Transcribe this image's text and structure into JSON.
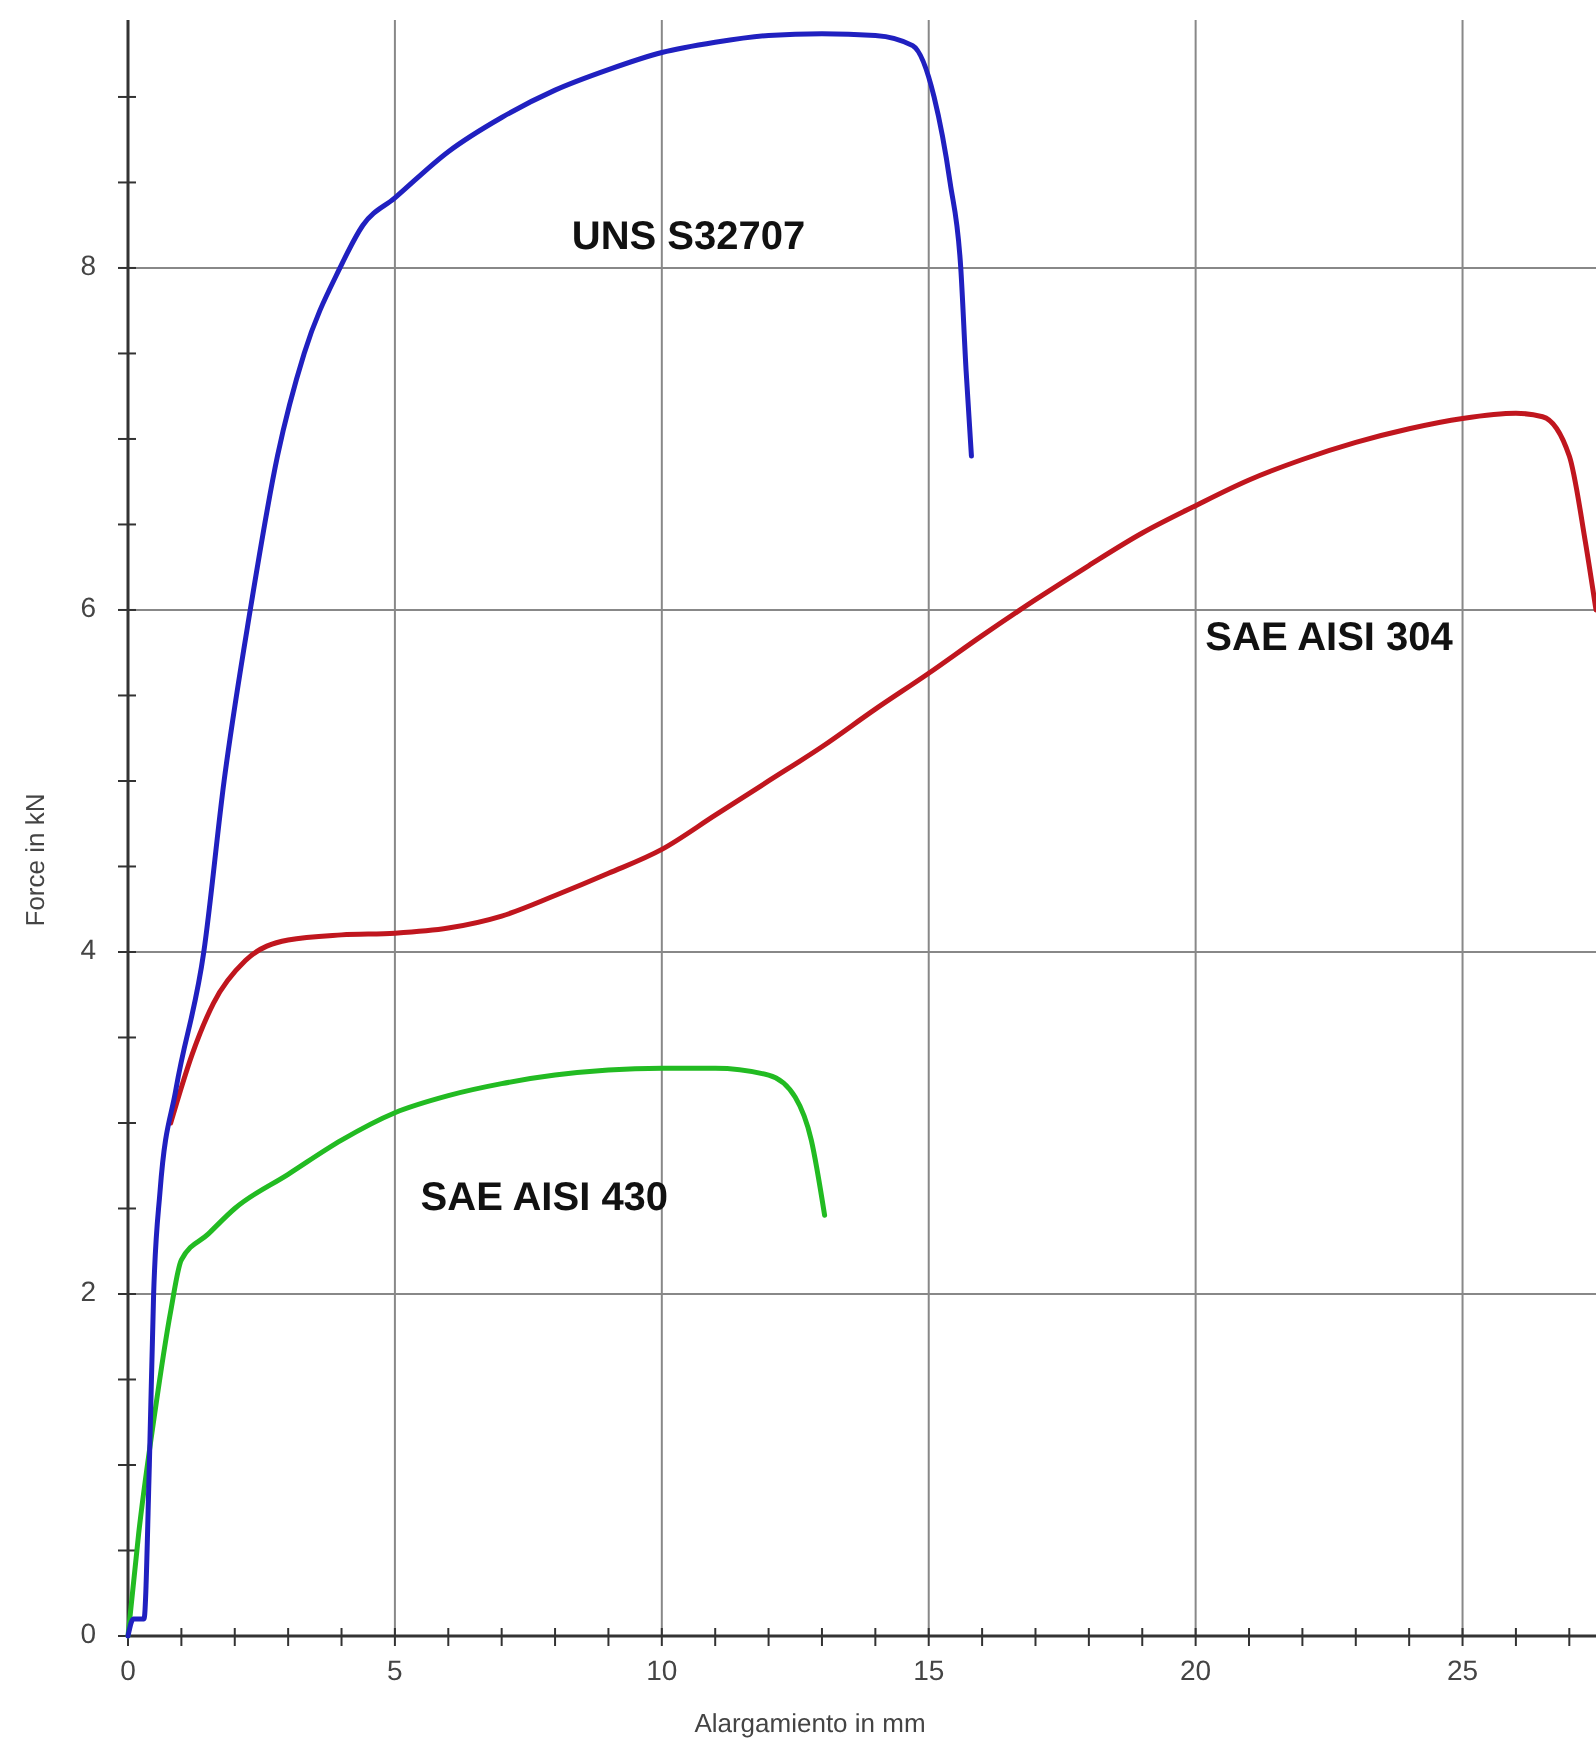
{
  "chart_data": {
    "type": "line",
    "xlabel": "Alargamiento in mm",
    "ylabel": "Force in kN",
    "xlim": [
      0,
      27.5
    ],
    "ylim": [
      0,
      9.45
    ],
    "xticks": [
      0,
      {
        "value": 1,
        "label": null
      },
      {
        "value": 2,
        "label": null
      },
      {
        "value": 3,
        "label": null
      },
      {
        "value": 4,
        "label": null
      },
      5,
      {
        "value": 6,
        "label": null
      },
      {
        "value": 7,
        "label": null
      },
      {
        "value": 8,
        "label": null
      },
      {
        "value": 9,
        "label": null
      },
      10,
      {
        "value": 11,
        "label": null
      },
      {
        "value": 12,
        "label": null
      },
      {
        "value": 13,
        "label": null
      },
      {
        "value": 14,
        "label": null
      },
      15,
      {
        "value": 16,
        "label": null
      },
      {
        "value": 17,
        "label": null
      },
      {
        "value": 18,
        "label": null
      },
      {
        "value": 19,
        "label": null
      },
      20,
      {
        "value": 21,
        "label": null
      },
      {
        "value": 22,
        "label": null
      },
      {
        "value": 23,
        "label": null
      },
      {
        "value": 24,
        "label": null
      },
      25,
      {
        "value": 26,
        "label": null
      },
      {
        "value": 27,
        "label": null
      }
    ],
    "yticks": [
      0,
      {
        "value": 0.5,
        "label": null
      },
      {
        "value": 1,
        "label": null
      },
      {
        "value": 1.5,
        "label": null
      },
      2,
      {
        "value": 2.5,
        "label": null
      },
      {
        "value": 3,
        "label": null
      },
      {
        "value": 3.5,
        "label": null
      },
      4,
      {
        "value": 4.5,
        "label": null
      },
      {
        "value": 5,
        "label": null
      },
      {
        "value": 5.5,
        "label": null
      },
      6,
      {
        "value": 6.5,
        "label": null
      },
      {
        "value": 7,
        "label": null
      },
      {
        "value": 7.5,
        "label": null
      },
      8,
      {
        "value": 8.5,
        "label": null
      },
      {
        "value": 9,
        "label": null
      }
    ],
    "grid": true,
    "marker": "none",
    "line_style": "solid",
    "series": [
      {
        "name": "UNS S32707",
        "color": "#2020c0",
        "x": [
          0,
          0.1,
          0.3,
          0.4,
          0.48,
          0.6,
          0.9,
          1.42,
          1.8,
          2.29,
          2.8,
          3.3,
          3.97,
          4.4,
          5,
          6,
          7,
          8,
          9,
          10,
          11,
          12,
          13,
          14,
          14.7,
          15.1,
          15.4,
          15.6,
          15.7,
          15.8
        ],
        "values": [
          0,
          0.1,
          0.1,
          1.0,
          2.0,
          2.6,
          3.2,
          4.0,
          5.0,
          6.0,
          6.9,
          7.5,
          8.0,
          8.25,
          8.41,
          8.68,
          8.88,
          9.04,
          9.16,
          9.26,
          9.32,
          9.36,
          9.37,
          9.36,
          9.3,
          9.0,
          8.5,
          8.0,
          7.4,
          6.9
        ]
      },
      {
        "name": "SAE AISI 304",
        "color": "#c0161e",
        "x": [
          0.8,
          1.2,
          1.6,
          2.2,
          3,
          4,
          5,
          6,
          7,
          8,
          9,
          10,
          11,
          12,
          13,
          14,
          15,
          16,
          17,
          18,
          19,
          20,
          21,
          22,
          23,
          24,
          25,
          26,
          26.5,
          27,
          27.3,
          27.5
        ],
        "values": [
          3.0,
          3.4,
          3.7,
          3.95,
          4.07,
          4.1,
          4.11,
          4.14,
          4.21,
          4.33,
          4.46,
          4.6,
          4.8,
          5.0,
          5.2,
          5.42,
          5.63,
          5.85,
          6.06,
          6.26,
          6.45,
          6.61,
          6.76,
          6.88,
          6.98,
          7.06,
          7.12,
          7.15,
          7.13,
          6.9,
          6.4,
          6.0
        ]
      },
      {
        "name": "SAE AISI 430",
        "color": "#22bb22",
        "x": [
          0,
          0.2,
          0.5,
          0.8,
          1,
          1.5,
          2,
          3,
          4,
          5,
          6,
          7,
          8,
          9,
          10,
          11,
          12,
          12.5,
          12.8,
          13.05
        ],
        "values": [
          0,
          0.6,
          1.3,
          1.9,
          2.2,
          2.35,
          2.5,
          2.7,
          2.9,
          3.06,
          3.16,
          3.23,
          3.28,
          3.31,
          3.32,
          3.32,
          3.28,
          3.15,
          2.9,
          2.46
        ]
      }
    ]
  }
}
